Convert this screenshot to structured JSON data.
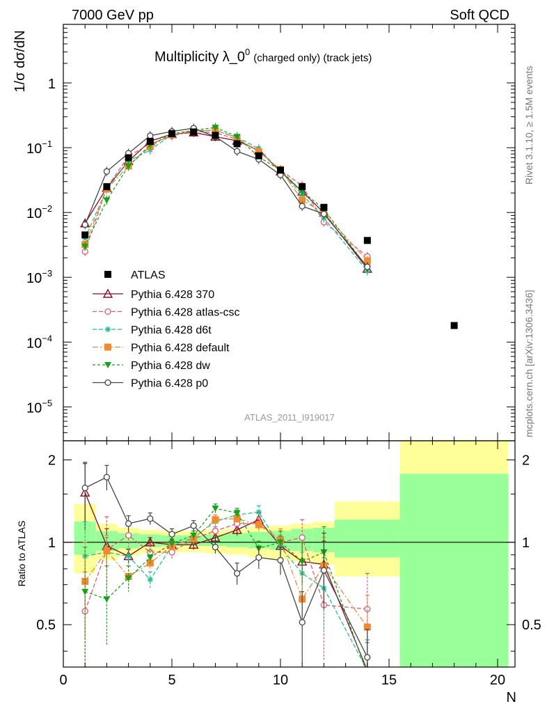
{
  "header": {
    "left": "7000 GeV pp",
    "right": "Soft QCD",
    "title_main": "Multiplicity λ_0",
    "title_sup": "0",
    "title_suffix": "(charged only) (track jets)",
    "analysis": "ATLAS_2011_I919017",
    "side_top": "Rivet 3.1.10, ≥ 1.5M events",
    "side_bottom": "mcplots.cern.ch [arXiv:1306.3436]"
  },
  "colors": {
    "ATLAS": "#000000",
    "370": "#8b0a1e",
    "atlas-csc": "#e8546e",
    "d6t": "#1fbf94",
    "default": "#f08a30",
    "dw": "#18a018",
    "p0": "#444444",
    "band_stat": "#99ff99",
    "band_total": "#ffff99"
  },
  "chart_data": [
    {
      "type": "scatter",
      "panel": "main",
      "ylabel": "1/σ dσ/dN",
      "yscale": "log",
      "ylim": [
        3e-06,
        8
      ],
      "xlim": [
        0,
        20.8
      ],
      "yticks": [
        {
          "v": 1,
          "label": "1",
          "exp": ""
        },
        {
          "v": 0.1,
          "label": "10",
          "exp": "−1"
        },
        {
          "v": 0.01,
          "label": "10",
          "exp": "−2"
        },
        {
          "v": 0.001,
          "label": "10",
          "exp": "−3"
        },
        {
          "v": 0.0001,
          "label": "10",
          "exp": "−4"
        },
        {
          "v": 1e-05,
          "label": "10",
          "exp": "−5"
        }
      ],
      "legend_position": "left-middle",
      "data_series": {
        "name": "ATLAS",
        "x": [
          1,
          2,
          3,
          4,
          5,
          6,
          7,
          8,
          9,
          10,
          11,
          12,
          14,
          18
        ],
        "y": [
          0.0045,
          0.025,
          0.07,
          0.125,
          0.165,
          0.175,
          0.155,
          0.115,
          0.075,
          0.045,
          0.025,
          0.012,
          0.0037,
          0.00018
        ]
      },
      "series": [
        {
          "name": "Pythia 6.428 370",
          "key": "370",
          "marker": "triangle-open",
          "dash": "",
          "x": [
            1,
            2,
            3,
            4,
            5,
            6,
            7,
            8,
            9,
            10,
            11,
            12,
            14
          ],
          "y": [
            0.0068,
            0.024,
            0.062,
            0.126,
            0.162,
            0.172,
            0.148,
            0.128,
            0.091,
            0.043,
            0.021,
            0.0099,
            0.00135
          ]
        },
        {
          "name": "Pythia 6.428 atlas-csc",
          "key": "atlas-csc",
          "marker": "circle-open",
          "dash": "6,3",
          "x": [
            1,
            2,
            3,
            4,
            5,
            6,
            7,
            8,
            9,
            10,
            11,
            12,
            14
          ],
          "y": [
            0.0025,
            0.024,
            0.074,
            0.115,
            0.152,
            0.18,
            0.17,
            0.135,
            0.088,
            0.045,
            0.026,
            0.0071,
            0.0021
          ]
        },
        {
          "name": "Pythia 6.428 d6t",
          "key": "d6t",
          "marker": "star",
          "dash": "6,3",
          "x": [
            1,
            2,
            3,
            4,
            5,
            6,
            7,
            8,
            9,
            10,
            11,
            12,
            14
          ],
          "y": [
            0.004,
            0.023,
            0.062,
            0.092,
            0.16,
            0.182,
            0.185,
            0.145,
            0.097,
            0.043,
            0.019,
            0.0082,
            0.00125
          ]
        },
        {
          "name": "Pythia 6.428 default",
          "key": "default",
          "marker": "square-filled",
          "dash": "8,3,2,3",
          "x": [
            1,
            2,
            3,
            4,
            5,
            6,
            7,
            8,
            9,
            10,
            11,
            12,
            14
          ],
          "y": [
            0.0032,
            0.023,
            0.052,
            0.105,
            0.16,
            0.18,
            0.188,
            0.14,
            0.087,
            0.046,
            0.0155,
            0.0098,
            0.0018
          ]
        },
        {
          "name": "Pythia 6.428 dw",
          "key": "dw",
          "marker": "triangle-down-filled",
          "dash": "4,3",
          "x": [
            1,
            2,
            3,
            4,
            5,
            6,
            7,
            8,
            9,
            10,
            11,
            12,
            14
          ],
          "y": [
            0.003,
            0.0155,
            0.052,
            0.11,
            0.163,
            0.185,
            0.205,
            0.148,
            0.072,
            0.045,
            0.021,
            0.0113,
            0.0014
          ]
        },
        {
          "name": "Pythia 6.428 p0",
          "key": "p0",
          "marker": "circle-open",
          "dash": "",
          "x": [
            1,
            2,
            3,
            4,
            5,
            6,
            7,
            8,
            9,
            10,
            11,
            12,
            14
          ],
          "y": [
            0.0065,
            0.043,
            0.082,
            0.153,
            0.178,
            0.2,
            0.148,
            0.088,
            0.066,
            0.038,
            0.0125,
            0.0095,
            0.00145
          ]
        }
      ]
    },
    {
      "type": "line",
      "panel": "ratio",
      "ylabel": "Ratio to ATLAS",
      "xlabel": "N",
      "yscale": "log",
      "ylim": [
        0.35,
        2.35
      ],
      "xlim": [
        0,
        20.8
      ],
      "xticks": [
        0,
        5,
        10,
        15,
        20
      ],
      "yticks": [
        {
          "v": 0.5,
          "label": "0.5"
        },
        {
          "v": 1,
          "label": "1"
        },
        {
          "v": 2,
          "label": "2"
        }
      ],
      "bands": [
        {
          "x0": 0.5,
          "x1": 1.5,
          "stat": [
            0.9,
            1.19
          ],
          "total": [
            0.77,
            1.38
          ]
        },
        {
          "x0": 1.5,
          "x1": 2.5,
          "stat": [
            0.93,
            1.1
          ],
          "total": [
            0.86,
            1.17
          ]
        },
        {
          "x0": 2.5,
          "x1": 3.5,
          "stat": [
            0.95,
            1.08
          ],
          "total": [
            0.89,
            1.13
          ]
        },
        {
          "x0": 3.5,
          "x1": 4.5,
          "stat": [
            0.96,
            1.07
          ],
          "total": [
            0.91,
            1.11
          ]
        },
        {
          "x0": 4.5,
          "x1": 5.5,
          "stat": [
            0.97,
            1.06
          ],
          "total": [
            0.92,
            1.1
          ]
        },
        {
          "x0": 5.5,
          "x1": 6.5,
          "stat": [
            0.97,
            1.06
          ],
          "total": [
            0.92,
            1.1
          ]
        },
        {
          "x0": 6.5,
          "x1": 7.5,
          "stat": [
            0.97,
            1.07
          ],
          "total": [
            0.91,
            1.11
          ]
        },
        {
          "x0": 7.5,
          "x1": 8.5,
          "stat": [
            0.96,
            1.08
          ],
          "total": [
            0.9,
            1.12
          ]
        },
        {
          "x0": 8.5,
          "x1": 9.5,
          "stat": [
            0.95,
            1.09
          ],
          "total": [
            0.88,
            1.14
          ]
        },
        {
          "x0": 9.5,
          "x1": 10.5,
          "stat": [
            0.94,
            1.1
          ],
          "total": [
            0.87,
            1.15
          ]
        },
        {
          "x0": 10.5,
          "x1": 11.5,
          "stat": [
            0.93,
            1.12
          ],
          "total": [
            0.85,
            1.17
          ]
        },
        {
          "x0": 11.5,
          "x1": 12.5,
          "stat": [
            0.92,
            1.13
          ],
          "total": [
            0.83,
            1.19
          ]
        },
        {
          "x0": 12.5,
          "x1": 15.5,
          "stat": [
            0.88,
            1.21
          ],
          "total": [
            0.75,
            1.41
          ]
        },
        {
          "x0": 15.5,
          "x1": 20.5,
          "stat": [
            0.35,
            1.78
          ],
          "total": [
            0.35,
            2.35
          ]
        }
      ],
      "series": [
        {
          "name": "Pythia 6.428 370",
          "key": "370",
          "marker": "triangle-open",
          "dash": "",
          "x": [
            1,
            2,
            3,
            4,
            5,
            6,
            7,
            8,
            9,
            10,
            11,
            12,
            14
          ],
          "y": [
            1.52,
            0.97,
            0.89,
            1.0,
            0.98,
            0.98,
            1.04,
            1.11,
            1.21,
            0.97,
            0.85,
            0.83,
            0.34
          ],
          "err": [
            0.42,
            0.15,
            0.05,
            0.04,
            0.04,
            0.04,
            0.04,
            0.05,
            0.07,
            0.08,
            0.15,
            0.25,
            0.1
          ]
        },
        {
          "name": "Pythia 6.428 atlas-csc",
          "key": "atlas-csc",
          "marker": "circle-open",
          "dash": "6,3",
          "x": [
            1,
            2,
            3,
            4,
            5,
            6,
            7,
            8,
            9,
            10,
            11,
            12,
            14
          ],
          "y": [
            0.56,
            0.94,
            1.06,
            0.92,
            0.92,
            1.03,
            1.1,
            1.17,
            1.17,
            1.0,
            1.04,
            0.59,
            0.57
          ],
          "err": [
            0.22,
            0.3,
            0.1,
            0.06,
            0.05,
            0.04,
            0.04,
            0.05,
            0.07,
            0.1,
            0.17,
            0.22,
            0.2
          ]
        },
        {
          "name": "Pythia 6.428 d6t",
          "key": "d6t",
          "marker": "star",
          "dash": "6,3",
          "x": [
            1,
            2,
            3,
            4,
            5,
            6,
            7,
            8,
            9,
            10,
            11,
            12,
            14
          ],
          "y": [
            0.89,
            0.92,
            0.89,
            0.73,
            0.97,
            1.04,
            1.19,
            1.26,
            1.29,
            0.96,
            0.77,
            0.68,
            0.34
          ],
          "err": [
            0.3,
            0.12,
            0.06,
            0.05,
            0.04,
            0.04,
            0.05,
            0.05,
            0.07,
            0.1,
            0.15,
            0.2,
            0.1
          ]
        },
        {
          "name": "Pythia 6.428 default",
          "key": "default",
          "marker": "square-filled",
          "dash": "8,3,2,3",
          "x": [
            1,
            2,
            3,
            4,
            5,
            6,
            7,
            8,
            9,
            10,
            11,
            12,
            14
          ],
          "y": [
            0.72,
            0.93,
            0.75,
            0.84,
            0.97,
            1.03,
            1.21,
            1.22,
            1.16,
            1.02,
            0.62,
            0.82,
            0.49
          ],
          "err": [
            0.28,
            0.13,
            0.07,
            0.05,
            0.04,
            0.04,
            0.05,
            0.05,
            0.07,
            0.1,
            0.14,
            0.22,
            0.15
          ]
        },
        {
          "name": "Pythia 6.428 dw",
          "key": "dw",
          "marker": "triangle-down-filled",
          "dash": "4,3",
          "x": [
            1,
            2,
            3,
            4,
            5,
            6,
            7,
            8,
            9,
            10,
            11,
            12,
            14
          ],
          "y": [
            0.66,
            0.62,
            0.74,
            0.88,
            0.99,
            1.06,
            1.33,
            1.28,
            0.95,
            1.0,
            0.85,
            0.92,
            0.33
          ],
          "err": [
            0.3,
            0.2,
            0.08,
            0.05,
            0.04,
            0.04,
            0.05,
            0.05,
            0.06,
            0.1,
            0.15,
            0.22,
            0.1
          ]
        },
        {
          "name": "Pythia 6.428 p0",
          "key": "p0",
          "marker": "circle-open",
          "dash": "",
          "x": [
            1,
            2,
            3,
            4,
            5,
            6,
            7,
            8,
            9,
            10,
            11,
            12,
            14
          ],
          "y": [
            1.58,
            1.73,
            1.17,
            1.22,
            1.07,
            1.15,
            0.96,
            0.77,
            0.88,
            0.86,
            0.51,
            0.79,
            0.38
          ],
          "err": [
            0.38,
            0.18,
            0.08,
            0.06,
            0.05,
            0.05,
            0.05,
            0.07,
            0.08,
            0.1,
            0.15,
            0.22,
            0.1
          ]
        }
      ]
    }
  ]
}
